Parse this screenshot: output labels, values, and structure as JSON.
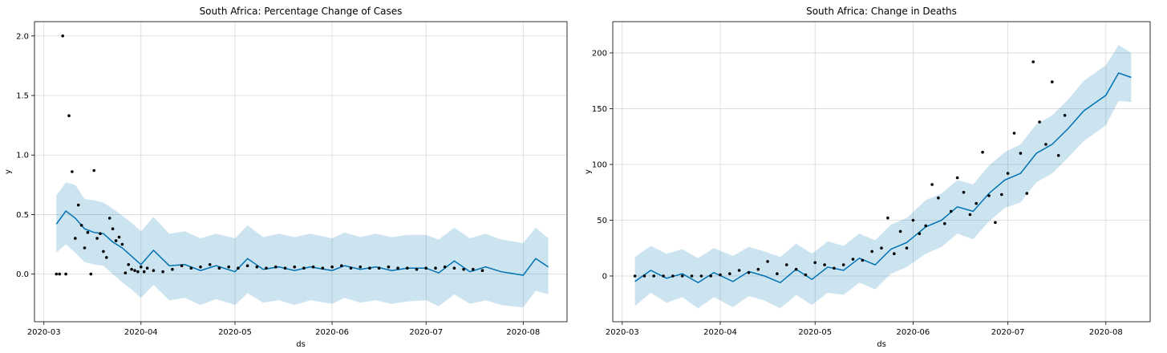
{
  "chart_data": [
    {
      "type": "scatter",
      "title": "South Africa: Percentage Change of Cases",
      "xlabel": "ds",
      "ylabel": "y",
      "xlim": [
        "2020-02-27",
        "2020-08-15"
      ],
      "ylim": [
        -0.4,
        2.12
      ],
      "xticks": [
        "2020-03",
        "2020-04",
        "2020-05",
        "2020-06",
        "2020-07",
        "2020-08"
      ],
      "yticks": [
        0.0,
        0.5,
        1.0,
        1.5,
        2.0
      ],
      "ytick_labels": [
        "0.0",
        "0.5",
        "1.0",
        "1.5",
        "2.0"
      ],
      "grid": true,
      "colors": {
        "forecast": "#0072B2",
        "observed": "#000000"
      },
      "forecast": {
        "x": [
          "2020-03-05",
          "2020-03-08",
          "2020-03-11",
          "2020-03-14",
          "2020-03-17",
          "2020-03-20",
          "2020-03-23",
          "2020-03-26",
          "2020-03-29",
          "2020-04-01",
          "2020-04-05",
          "2020-04-10",
          "2020-04-15",
          "2020-04-20",
          "2020-04-25",
          "2020-05-01",
          "2020-05-05",
          "2020-05-10",
          "2020-05-15",
          "2020-05-20",
          "2020-05-25",
          "2020-06-01",
          "2020-06-05",
          "2020-06-10",
          "2020-06-15",
          "2020-06-20",
          "2020-06-25",
          "2020-07-01",
          "2020-07-05",
          "2020-07-10",
          "2020-07-15",
          "2020-07-20",
          "2020-07-25",
          "2020-08-01",
          "2020-08-05",
          "2020-08-09"
        ],
        "yhat": [
          0.42,
          0.53,
          0.47,
          0.38,
          0.35,
          0.34,
          0.27,
          0.22,
          0.15,
          0.08,
          0.2,
          0.07,
          0.08,
          0.03,
          0.07,
          0.02,
          0.13,
          0.04,
          0.06,
          0.03,
          0.06,
          0.03,
          0.07,
          0.04,
          0.06,
          0.03,
          0.05,
          0.05,
          0.01,
          0.11,
          0.02,
          0.06,
          0.02,
          -0.01,
          0.13,
          0.06
        ],
        "lower": [
          0.18,
          0.25,
          0.18,
          0.1,
          0.08,
          0.07,
          0.0,
          -0.07,
          -0.13,
          -0.2,
          -0.09,
          -0.22,
          -0.2,
          -0.26,
          -0.21,
          -0.26,
          -0.16,
          -0.24,
          -0.22,
          -0.26,
          -0.22,
          -0.25,
          -0.2,
          -0.24,
          -0.22,
          -0.25,
          -0.23,
          -0.22,
          -0.27,
          -0.17,
          -0.25,
          -0.22,
          -0.26,
          -0.28,
          -0.14,
          -0.17
        ],
        "upper": [
          0.66,
          0.77,
          0.75,
          0.63,
          0.62,
          0.6,
          0.55,
          0.49,
          0.43,
          0.36,
          0.48,
          0.34,
          0.36,
          0.3,
          0.34,
          0.3,
          0.41,
          0.31,
          0.34,
          0.31,
          0.34,
          0.3,
          0.35,
          0.31,
          0.34,
          0.31,
          0.33,
          0.33,
          0.29,
          0.39,
          0.3,
          0.34,
          0.29,
          0.26,
          0.39,
          0.3
        ]
      },
      "observed": {
        "x": [
          "2020-03-05",
          "2020-03-06",
          "2020-03-07",
          "2020-03-08",
          "2020-03-09",
          "2020-03-10",
          "2020-03-11",
          "2020-03-12",
          "2020-03-13",
          "2020-03-14",
          "2020-03-15",
          "2020-03-16",
          "2020-03-17",
          "2020-03-18",
          "2020-03-19",
          "2020-03-20",
          "2020-03-21",
          "2020-03-22",
          "2020-03-23",
          "2020-03-24",
          "2020-03-25",
          "2020-03-26",
          "2020-03-27",
          "2020-03-28",
          "2020-03-29",
          "2020-03-30",
          "2020-03-31",
          "2020-04-01",
          "2020-04-02",
          "2020-04-03",
          "2020-04-05",
          "2020-04-08",
          "2020-04-11",
          "2020-04-14",
          "2020-04-17",
          "2020-04-20",
          "2020-04-23",
          "2020-04-26",
          "2020-04-29",
          "2020-05-02",
          "2020-05-05",
          "2020-05-08",
          "2020-05-11",
          "2020-05-14",
          "2020-05-17",
          "2020-05-20",
          "2020-05-23",
          "2020-05-26",
          "2020-05-29",
          "2020-06-01",
          "2020-06-04",
          "2020-06-07",
          "2020-06-10",
          "2020-06-13",
          "2020-06-16",
          "2020-06-19",
          "2020-06-22",
          "2020-06-25",
          "2020-06-28",
          "2020-07-01",
          "2020-07-04",
          "2020-07-07",
          "2020-07-10",
          "2020-07-13",
          "2020-07-16",
          "2020-07-19"
        ],
        "y": [
          0.0,
          0.0,
          2.0,
          0.0,
          1.33,
          0.86,
          0.3,
          0.58,
          0.41,
          0.22,
          0.35,
          0.0,
          0.87,
          0.3,
          0.34,
          0.19,
          0.14,
          0.47,
          0.38,
          0.28,
          0.31,
          0.25,
          0.01,
          0.08,
          0.04,
          0.03,
          0.02,
          0.06,
          0.02,
          0.05,
          0.03,
          0.02,
          0.04,
          0.07,
          0.05,
          0.06,
          0.08,
          0.05,
          0.06,
          0.05,
          0.07,
          0.06,
          0.05,
          0.06,
          0.05,
          0.06,
          0.05,
          0.06,
          0.05,
          0.06,
          0.07,
          0.05,
          0.06,
          0.05,
          0.05,
          0.06,
          0.05,
          0.05,
          0.04,
          0.05,
          0.05,
          0.06,
          0.05,
          0.04,
          0.04,
          0.03
        ]
      }
    },
    {
      "type": "scatter",
      "title": "South Africa: Change in Deaths",
      "xlabel": "ds",
      "ylabel": "y",
      "xlim": [
        "2020-02-27",
        "2020-08-15"
      ],
      "ylim": [
        -41,
        228
      ],
      "xticks": [
        "2020-03",
        "2020-04",
        "2020-05",
        "2020-06",
        "2020-07",
        "2020-08"
      ],
      "yticks": [
        0,
        50,
        100,
        150,
        200
      ],
      "ytick_labels": [
        "0",
        "50",
        "100",
        "150",
        "200"
      ],
      "grid": true,
      "colors": {
        "forecast": "#0072B2",
        "observed": "#000000"
      },
      "forecast": {
        "x": [
          "2020-03-05",
          "2020-03-10",
          "2020-03-15",
          "2020-03-20",
          "2020-03-25",
          "2020-03-30",
          "2020-04-05",
          "2020-04-10",
          "2020-04-15",
          "2020-04-20",
          "2020-04-25",
          "2020-04-30",
          "2020-05-05",
          "2020-05-10",
          "2020-05-15",
          "2020-05-20",
          "2020-05-25",
          "2020-05-30",
          "2020-06-05",
          "2020-06-10",
          "2020-06-15",
          "2020-06-20",
          "2020-06-25",
          "2020-06-30",
          "2020-07-05",
          "2020-07-10",
          "2020-07-15",
          "2020-07-20",
          "2020-07-25",
          "2020-08-01",
          "2020-08-05",
          "2020-08-09"
        ],
        "yhat": [
          -5,
          5,
          -2,
          2,
          -6,
          3,
          -5,
          4,
          0,
          -6,
          6,
          -3,
          8,
          5,
          16,
          10,
          24,
          30,
          44,
          50,
          62,
          58,
          74,
          86,
          92,
          110,
          118,
          132,
          148,
          162,
          182,
          178
        ],
        "lower": [
          -27,
          -15,
          -24,
          -19,
          -29,
          -19,
          -28,
          -18,
          -22,
          -29,
          -17,
          -26,
          -15,
          -17,
          -6,
          -12,
          2,
          8,
          20,
          26,
          38,
          33,
          49,
          61,
          66,
          84,
          92,
          106,
          121,
          135,
          157,
          156
        ],
        "upper": [
          17,
          27,
          20,
          24,
          16,
          25,
          18,
          26,
          22,
          17,
          29,
          20,
          31,
          27,
          38,
          32,
          46,
          52,
          68,
          74,
          86,
          82,
          99,
          111,
          118,
          136,
          144,
          158,
          175,
          189,
          207,
          200
        ]
      },
      "observed": {
        "x": [
          "2020-03-05",
          "2020-03-08",
          "2020-03-11",
          "2020-03-14",
          "2020-03-17",
          "2020-03-20",
          "2020-03-23",
          "2020-03-26",
          "2020-03-29",
          "2020-04-01",
          "2020-04-04",
          "2020-04-07",
          "2020-04-10",
          "2020-04-13",
          "2020-04-16",
          "2020-04-19",
          "2020-04-22",
          "2020-04-25",
          "2020-04-28",
          "2020-05-01",
          "2020-05-04",
          "2020-05-07",
          "2020-05-10",
          "2020-05-13",
          "2020-05-16",
          "2020-05-19",
          "2020-05-22",
          "2020-05-24",
          "2020-05-26",
          "2020-05-28",
          "2020-05-30",
          "2020-06-01",
          "2020-06-03",
          "2020-06-05",
          "2020-06-07",
          "2020-06-09",
          "2020-06-11",
          "2020-06-13",
          "2020-06-15",
          "2020-06-17",
          "2020-06-19",
          "2020-06-21",
          "2020-06-23",
          "2020-06-25",
          "2020-06-27",
          "2020-06-29",
          "2020-07-01",
          "2020-07-03",
          "2020-07-05",
          "2020-07-07",
          "2020-07-09",
          "2020-07-11",
          "2020-07-13",
          "2020-07-15",
          "2020-07-17",
          "2020-07-19"
        ],
        "y": [
          0,
          0,
          0,
          0,
          0,
          0,
          0,
          0,
          0,
          1,
          2,
          5,
          3,
          6,
          13,
          2,
          10,
          6,
          1,
          12,
          10,
          7,
          10,
          15,
          14,
          22,
          25,
          52,
          20,
          40,
          25,
          50,
          38,
          45,
          82,
          70,
          47,
          58,
          88,
          75,
          55,
          65,
          111,
          72,
          48,
          73,
          92,
          128,
          110,
          74,
          192,
          138,
          118,
          174,
          108,
          144
        ]
      }
    }
  ]
}
